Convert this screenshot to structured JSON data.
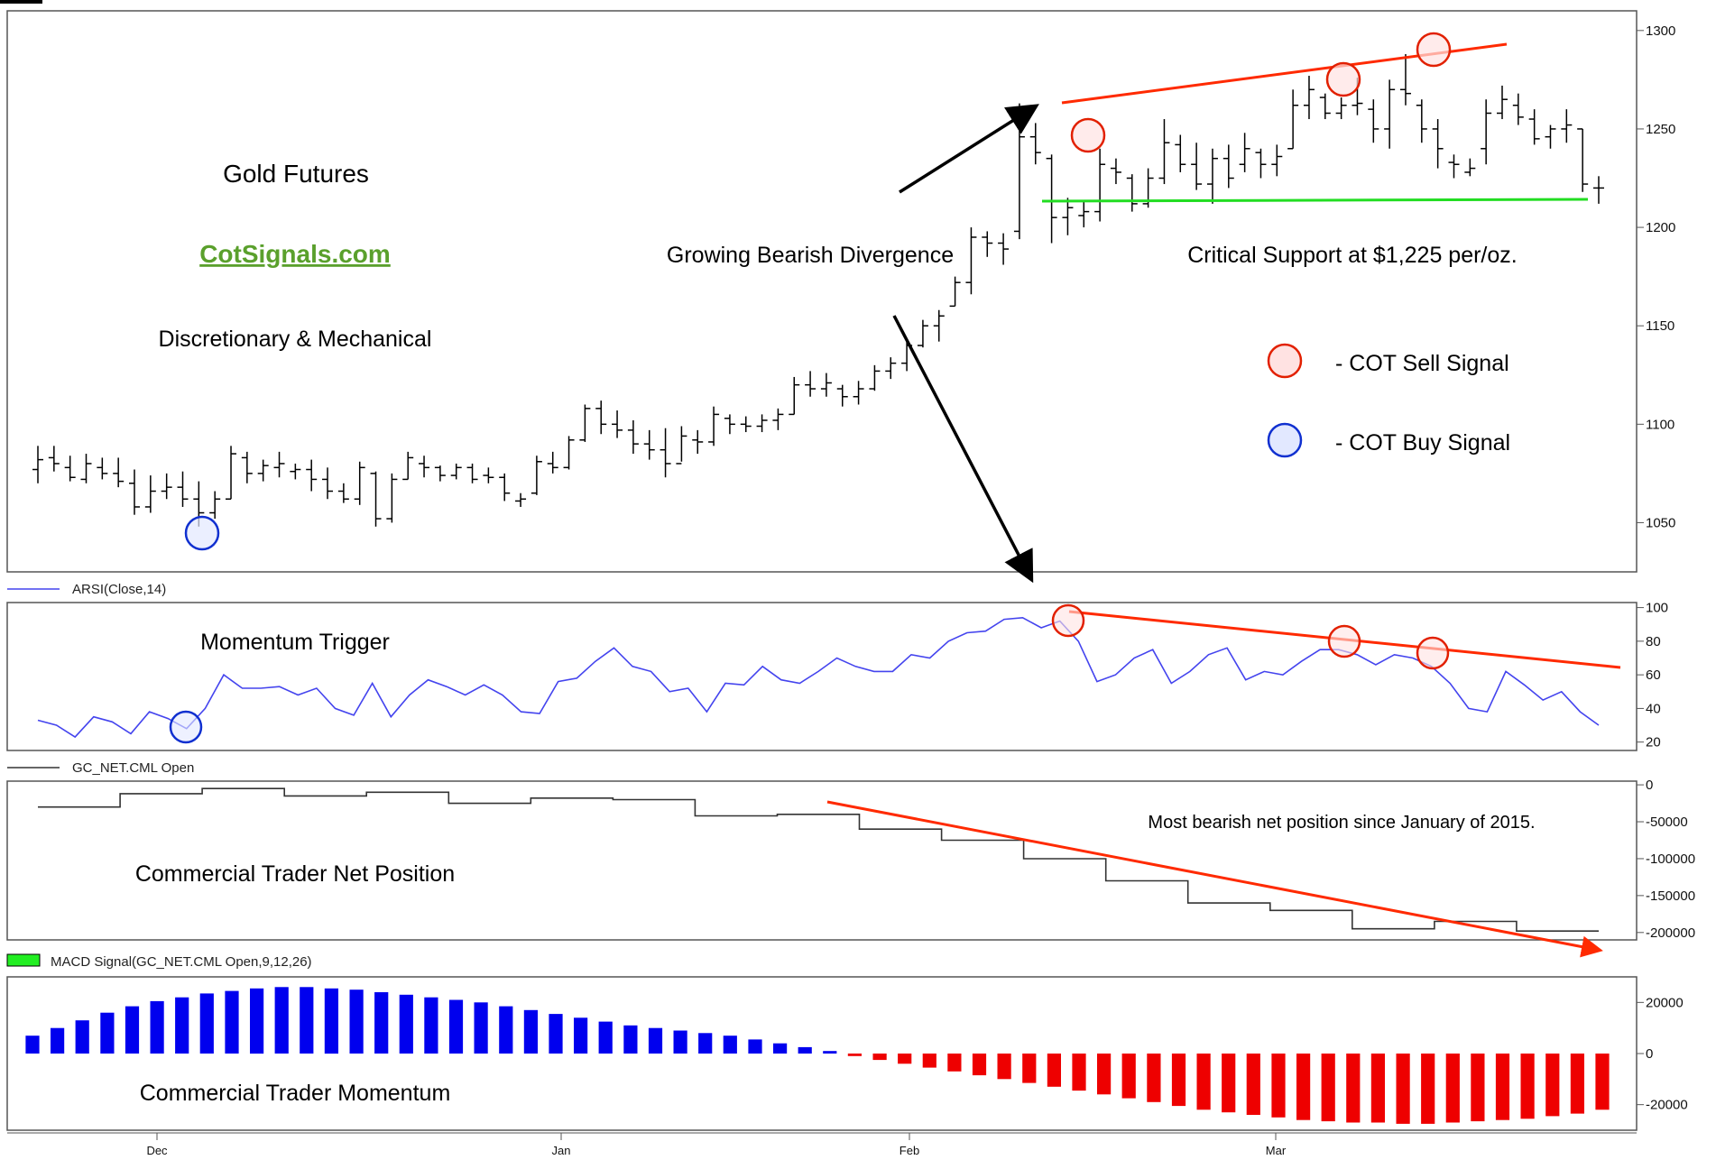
{
  "chart_data": [
    {
      "type": "bar",
      "subtype": "ohlc",
      "legend": "Close",
      "ylim": [
        1025,
        1310
      ],
      "yticks": [
        1050,
        1100,
        1150,
        1200,
        1250,
        1300
      ],
      "bars": [
        {
          "high": 1089,
          "low": 1070,
          "open": 1077,
          "close": 1082
        },
        {
          "high": 1089,
          "low": 1076,
          "open": 1083,
          "close": 1080
        },
        {
          "high": 1084,
          "low": 1071,
          "open": 1078,
          "close": 1073
        },
        {
          "high": 1085,
          "low": 1070,
          "open": 1072,
          "close": 1080
        },
        {
          "high": 1083,
          "low": 1072,
          "open": 1078,
          "close": 1075
        },
        {
          "high": 1083,
          "low": 1068,
          "open": 1075,
          "close": 1071
        },
        {
          "high": 1077,
          "low": 1054,
          "open": 1070,
          "close": 1058
        },
        {
          "high": 1074,
          "low": 1055,
          "open": 1058,
          "close": 1066
        },
        {
          "high": 1075,
          "low": 1062,
          "open": 1066,
          "close": 1068
        },
        {
          "high": 1076,
          "low": 1058,
          "open": 1068,
          "close": 1062
        },
        {
          "high": 1071,
          "low": 1048,
          "open": 1062,
          "close": 1055
        },
        {
          "high": 1066,
          "low": 1052,
          "open": 1055,
          "close": 1062
        },
        {
          "high": 1089,
          "low": 1062,
          "open": 1062,
          "close": 1085
        },
        {
          "high": 1086,
          "low": 1070,
          "open": 1083,
          "close": 1075
        },
        {
          "high": 1082,
          "low": 1071,
          "open": 1075,
          "close": 1079
        },
        {
          "high": 1086,
          "low": 1073,
          "open": 1078,
          "close": 1080
        },
        {
          "high": 1080,
          "low": 1072,
          "open": 1076,
          "close": 1077
        },
        {
          "high": 1082,
          "low": 1066,
          "open": 1077,
          "close": 1072
        },
        {
          "high": 1078,
          "low": 1062,
          "open": 1072,
          "close": 1066
        },
        {
          "high": 1070,
          "low": 1060,
          "open": 1066,
          "close": 1062
        },
        {
          "high": 1081,
          "low": 1059,
          "open": 1062,
          "close": 1078
        },
        {
          "high": 1076,
          "low": 1048,
          "open": 1075,
          "close": 1052
        },
        {
          "high": 1075,
          "low": 1050,
          "open": 1052,
          "close": 1072
        },
        {
          "high": 1086,
          "low": 1072,
          "open": 1072,
          "close": 1083
        },
        {
          "high": 1084,
          "low": 1073,
          "open": 1080,
          "close": 1078
        },
        {
          "high": 1079,
          "low": 1071,
          "open": 1078,
          "close": 1074
        },
        {
          "high": 1080,
          "low": 1072,
          "open": 1074,
          "close": 1078
        },
        {
          "high": 1080,
          "low": 1070,
          "open": 1078,
          "close": 1072
        },
        {
          "high": 1078,
          "low": 1070,
          "open": 1074,
          "close": 1073
        },
        {
          "high": 1075,
          "low": 1061,
          "open": 1073,
          "close": 1065
        },
        {
          "high": 1065,
          "low": 1058,
          "open": 1061,
          "close": 1062
        },
        {
          "high": 1084,
          "low": 1064,
          "open": 1065,
          "close": 1081
        },
        {
          "high": 1086,
          "low": 1075,
          "open": 1080,
          "close": 1078
        },
        {
          "high": 1094,
          "low": 1077,
          "open": 1078,
          "close": 1092
        },
        {
          "high": 1110,
          "low": 1091,
          "open": 1092,
          "close": 1108
        },
        {
          "high": 1112,
          "low": 1095,
          "open": 1108,
          "close": 1100
        },
        {
          "high": 1107,
          "low": 1093,
          "open": 1100,
          "close": 1097
        },
        {
          "high": 1102,
          "low": 1085,
          "open": 1097,
          "close": 1090
        },
        {
          "high": 1097,
          "low": 1082,
          "open": 1090,
          "close": 1087
        },
        {
          "high": 1098,
          "low": 1073,
          "open": 1087,
          "close": 1080
        },
        {
          "high": 1099,
          "low": 1081,
          "open": 1080,
          "close": 1094
        },
        {
          "high": 1097,
          "low": 1085,
          "open": 1092,
          "close": 1091
        },
        {
          "high": 1109,
          "low": 1089,
          "open": 1091,
          "close": 1105
        },
        {
          "high": 1105,
          "low": 1095,
          "open": 1103,
          "close": 1100
        },
        {
          "high": 1104,
          "low": 1096,
          "open": 1100,
          "close": 1099
        },
        {
          "high": 1105,
          "low": 1096,
          "open": 1099,
          "close": 1102
        },
        {
          "high": 1108,
          "low": 1097,
          "open": 1102,
          "close": 1105
        },
        {
          "high": 1124,
          "low": 1105,
          "open": 1105,
          "close": 1120
        },
        {
          "high": 1127,
          "low": 1114,
          "open": 1120,
          "close": 1118
        },
        {
          "high": 1126,
          "low": 1114,
          "open": 1118,
          "close": 1121
        },
        {
          "high": 1120,
          "low": 1109,
          "open": 1118,
          "close": 1114
        },
        {
          "high": 1122,
          "low": 1110,
          "open": 1114,
          "close": 1118
        },
        {
          "high": 1130,
          "low": 1117,
          "open": 1118,
          "close": 1127
        },
        {
          "high": 1134,
          "low": 1123,
          "open": 1127,
          "close": 1131
        },
        {
          "high": 1143,
          "low": 1127,
          "open": 1131,
          "close": 1140
        },
        {
          "high": 1153,
          "low": 1139,
          "open": 1140,
          "close": 1150
        },
        {
          "high": 1158,
          "low": 1142,
          "open": 1150,
          "close": 1155
        },
        {
          "high": 1175,
          "low": 1160,
          "open": 1160,
          "close": 1172
        },
        {
          "high": 1200,
          "low": 1166,
          "open": 1172,
          "close": 1195
        },
        {
          "high": 1198,
          "low": 1185,
          "open": 1195,
          "close": 1192
        },
        {
          "high": 1197,
          "low": 1181,
          "open": 1192,
          "close": 1189
        },
        {
          "high": 1263,
          "low": 1194,
          "open": 1198,
          "close": 1246
        },
        {
          "high": 1253,
          "low": 1232,
          "open": 1246,
          "close": 1238
        },
        {
          "high": 1237,
          "low": 1192,
          "open": 1235,
          "close": 1205
        },
        {
          "high": 1215,
          "low": 1196,
          "open": 1205,
          "close": 1210
        },
        {
          "high": 1213,
          "low": 1200,
          "open": 1206,
          "close": 1208
        },
        {
          "high": 1240,
          "low": 1203,
          "open": 1208,
          "close": 1232
        },
        {
          "high": 1235,
          "low": 1222,
          "open": 1230,
          "close": 1228
        },
        {
          "high": 1227,
          "low": 1208,
          "open": 1225,
          "close": 1212
        },
        {
          "high": 1230,
          "low": 1210,
          "open": 1212,
          "close": 1225
        },
        {
          "high": 1255,
          "low": 1222,
          "open": 1225,
          "close": 1243
        },
        {
          "high": 1247,
          "low": 1228,
          "open": 1242,
          "close": 1232
        },
        {
          "high": 1243,
          "low": 1219,
          "open": 1232,
          "close": 1222
        },
        {
          "high": 1240,
          "low": 1212,
          "open": 1222,
          "close": 1235
        },
        {
          "high": 1242,
          "low": 1220,
          "open": 1235,
          "close": 1225
        },
        {
          "high": 1248,
          "low": 1228,
          "open": 1232,
          "close": 1240
        },
        {
          "high": 1240,
          "low": 1225,
          "open": 1238,
          "close": 1232
        },
        {
          "high": 1242,
          "low": 1226,
          "open": 1232,
          "close": 1236
        },
        {
          "high": 1270,
          "low": 1240,
          "open": 1240,
          "close": 1262
        },
        {
          "high": 1277,
          "low": 1255,
          "open": 1262,
          "close": 1270
        },
        {
          "high": 1268,
          "low": 1255,
          "open": 1266,
          "close": 1258
        },
        {
          "high": 1266,
          "low": 1255,
          "open": 1258,
          "close": 1262
        },
        {
          "high": 1276,
          "low": 1257,
          "open": 1262,
          "close": 1263
        },
        {
          "high": 1265,
          "low": 1243,
          "open": 1260,
          "close": 1250
        },
        {
          "high": 1275,
          "low": 1240,
          "open": 1250,
          "close": 1270
        },
        {
          "high": 1288,
          "low": 1262,
          "open": 1270,
          "close": 1268
        },
        {
          "high": 1265,
          "low": 1243,
          "open": 1262,
          "close": 1250
        },
        {
          "high": 1255,
          "low": 1230,
          "open": 1250,
          "close": 1240
        },
        {
          "high": 1237,
          "low": 1225,
          "open": 1233,
          "close": 1232
        },
        {
          "high": 1235,
          "low": 1226,
          "open": 1228,
          "close": 1230
        },
        {
          "high": 1265,
          "low": 1232,
          "open": 1240,
          "close": 1258
        },
        {
          "high": 1272,
          "low": 1255,
          "open": 1258,
          "close": 1265
        },
        {
          "high": 1268,
          "low": 1252,
          "open": 1262,
          "close": 1256
        },
        {
          "high": 1260,
          "low": 1242,
          "open": 1255,
          "close": 1245
        },
        {
          "high": 1252,
          "low": 1240,
          "open": 1246,
          "close": 1250
        },
        {
          "high": 1260,
          "low": 1243,
          "open": 1250,
          "close": 1252
        },
        {
          "high": 1250,
          "low": 1218,
          "open": 1250,
          "close": 1222
        },
        {
          "high": 1226,
          "low": 1212,
          "open": 1220,
          "close": 1220
        }
      ],
      "annotations": {
        "title": "Gold Futures",
        "link": "CotSignals.com",
        "subtitle": "Discretionary & Mechanical",
        "divergence": "Growing Bearish Divergence",
        "support": "Critical Support at $1,225 per/oz.",
        "sell_legend": "- COT Sell Signal",
        "buy_legend": "- COT Buy Signal"
      },
      "colors": {
        "bars": "#000000",
        "resistance": "#ff2a00",
        "support": "#22dd22",
        "sell": "#e22000",
        "buy": "#1030d0"
      }
    },
    {
      "type": "line",
      "legend": "ARSI(Close,14)",
      "label": "Momentum Trigger",
      "ylim": [
        15,
        103
      ],
      "yticks": [
        20,
        40,
        60,
        80,
        100
      ],
      "values": [
        33,
        30,
        23,
        35,
        32,
        25,
        38,
        34,
        28,
        40,
        60,
        52,
        52,
        53,
        48,
        52,
        40,
        36,
        55,
        35,
        48,
        57,
        53,
        48,
        54,
        48,
        38,
        37,
        56,
        58,
        68,
        76,
        65,
        62,
        50,
        52,
        38,
        55,
        54,
        65,
        57,
        55,
        62,
        70,
        65,
        62,
        62,
        72,
        70,
        80,
        85,
        86,
        93,
        94,
        88,
        92,
        80,
        56,
        60,
        70,
        75,
        55,
        62,
        72,
        76,
        57,
        62,
        60,
        68,
        75,
        75,
        72,
        66,
        72,
        70,
        65,
        55,
        40,
        38,
        62,
        54,
        45,
        50,
        38,
        30
      ],
      "color": "#4444ee"
    },
    {
      "type": "line",
      "legend": "GC_NET.CML Open",
      "label": "Commercial Trader Net Position",
      "annotation": "Most bearish net position since January of 2015.",
      "ylim": [
        -210000,
        5000
      ],
      "ytick_labels": [
        "0",
        "-50000",
        "-100000",
        "-150000",
        "-200000"
      ],
      "values": [
        -30000,
        -30000,
        -12000,
        -12000,
        -5000,
        -5000,
        -15000,
        -15000,
        -10000,
        -10000,
        -25000,
        -25000,
        -18000,
        -18000,
        -20000,
        -20000,
        -42000,
        -42000,
        -40000,
        -40000,
        -60000,
        -60000,
        -75000,
        -75000,
        -100000,
        -100000,
        -130000,
        -130000,
        -160000,
        -160000,
        -170000,
        -170000,
        -195000,
        -195000,
        -185000,
        -185000,
        -198000,
        -198000
      ],
      "color": "#333333"
    },
    {
      "type": "bar",
      "legend": "MACD Signal(GC_NET.CML Open,9,12,26)",
      "label": "Commercial Trader Momentum",
      "ylim": [
        -30000,
        30000
      ],
      "yticks": [
        20000,
        0,
        -20000
      ],
      "values": [
        7000,
        10000,
        13000,
        16000,
        18500,
        20500,
        22000,
        23500,
        24500,
        25500,
        26000,
        26000,
        25500,
        25000,
        24000,
        23000,
        22000,
        21000,
        20000,
        18500,
        17000,
        15500,
        14000,
        12500,
        11000,
        10000,
        9000,
        8000,
        7000,
        5500,
        4000,
        2500,
        1000,
        -1000,
        -2500,
        -4000,
        -5500,
        -7000,
        -8500,
        -10000,
        -11500,
        -13000,
        -14500,
        -16000,
        -17500,
        -19000,
        -20500,
        -22000,
        -23000,
        -24000,
        -25000,
        -26000,
        -26500,
        -27000,
        -27000,
        -27500,
        -27500,
        -27000,
        -26500,
        -26000,
        -25500,
        -24500,
        -23500,
        -22000
      ],
      "colors": {
        "positive": "#0000ee",
        "negative": "#ee0000",
        "legend_swatch": "#22ee22"
      }
    }
  ],
  "x_axis": {
    "tick_labels": [
      "Dec",
      "Jan",
      "Feb",
      "Mar"
    ]
  }
}
